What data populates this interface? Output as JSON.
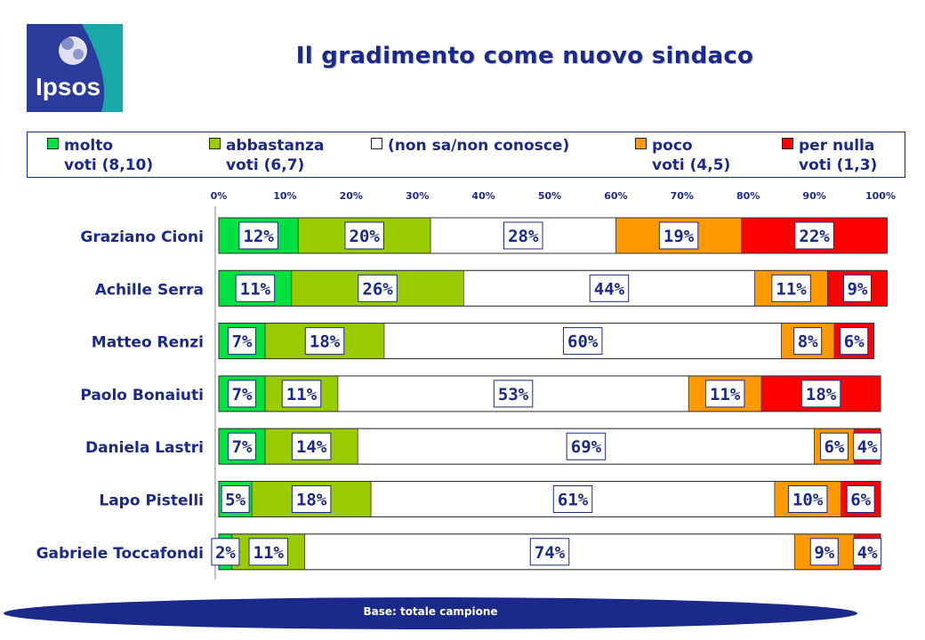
{
  "logo": {
    "text": "Ipsos"
  },
  "title": "Il gradimento come nuovo sindaco",
  "legend": [
    {
      "line1": "molto",
      "line2": "voti (8,10)",
      "color": "#00e040"
    },
    {
      "line1": "abbastanza",
      "line2": "voti (6,7)",
      "color": "#99cc00"
    },
    {
      "line1": "(non sa/non conosce)",
      "line2": "",
      "color": "#ffffff"
    },
    {
      "line1": "poco",
      "line2": "voti (4,5)",
      "color": "#ff9900"
    },
    {
      "line1": "per nulla",
      "line2": "voti (1,3)",
      "color": "#ff0000"
    }
  ],
  "chart_data": {
    "type": "bar",
    "orientation": "horizontal",
    "stacked": "percent",
    "categories": [
      "Graziano Cioni",
      "Achille Serra",
      "Matteo Renzi",
      "Paolo Bonaiuti",
      "Daniela Lastri",
      "Lapo Pistelli",
      "Gabriele Toccafondi"
    ],
    "series": [
      {
        "name": "molto voti (8,10)",
        "color": "#00e040",
        "values": [
          12,
          11,
          7,
          7,
          7,
          5,
          2
        ]
      },
      {
        "name": "abbastanza voti (6,7)",
        "color": "#99cc00",
        "values": [
          20,
          26,
          18,
          11,
          14,
          18,
          11
        ]
      },
      {
        "name": "(non sa/non conosce)",
        "color": "#ffffff",
        "values": [
          28,
          44,
          60,
          53,
          69,
          61,
          74
        ]
      },
      {
        "name": "poco voti (4,5)",
        "color": "#ff9900",
        "values": [
          19,
          11,
          8,
          11,
          6,
          10,
          9
        ]
      },
      {
        "name": "per nulla voti (1,3)",
        "color": "#ff0000",
        "values": [
          22,
          9,
          6,
          18,
          4,
          6,
          4
        ]
      }
    ],
    "xticks": [
      "0%",
      "10%",
      "20%",
      "30%",
      "40%",
      "50%",
      "60%",
      "70%",
      "80%",
      "90%",
      "100%"
    ],
    "xlim": [
      0,
      100
    ],
    "legend_position": "top",
    "text_color": "#1b2a8a"
  },
  "footer": {
    "text": "Base: totale campione",
    "color": "#1b2a8a"
  }
}
